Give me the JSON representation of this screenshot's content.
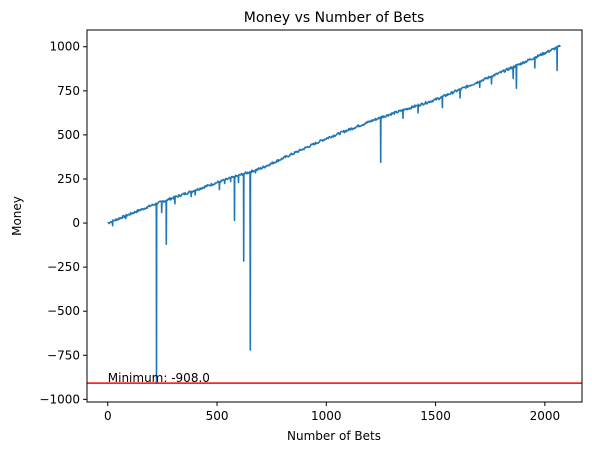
{
  "chart_data": {
    "type": "line",
    "title": "Money vs Number of Bets",
    "xlabel": "Number of Bets",
    "ylabel": "Money",
    "xlim": [
      -95,
      2170
    ],
    "ylim": [
      -1015,
      1095
    ],
    "xticks": [
      0,
      500,
      1000,
      1500,
      2000
    ],
    "yticks": [
      -1000,
      -750,
      -500,
      -250,
      0,
      250,
      500,
      750,
      1000
    ],
    "xtick_labels": [
      "0",
      "500",
      "1000",
      "1500",
      "2000"
    ],
    "ytick_labels": [
      "−1000",
      "−750",
      "−500",
      "−250",
      "0",
      "250",
      "500",
      "750",
      "1000"
    ],
    "grid": false,
    "series": [
      {
        "color": "#1f77b4",
        "trend": [
          [
            0,
            0
          ],
          [
            200,
            100
          ],
          [
            500,
            230
          ],
          [
            700,
            310
          ],
          [
            1000,
            480
          ],
          [
            1250,
            600
          ],
          [
            1500,
            700
          ],
          [
            1800,
            855
          ],
          [
            2070,
            1003
          ]
        ],
        "dips": [
          [
            22,
            -15
          ],
          [
            80,
            25
          ],
          [
            180,
            85
          ],
          [
            223,
            -908
          ],
          [
            245,
            60
          ],
          [
            268,
            -120
          ],
          [
            305,
            110
          ],
          [
            380,
            150
          ],
          [
            400,
            160
          ],
          [
            510,
            190
          ],
          [
            535,
            225
          ],
          [
            560,
            235
          ],
          [
            580,
            15
          ],
          [
            598,
            230
          ],
          [
            622,
            -215
          ],
          [
            650,
            -720
          ],
          [
            675,
            285
          ],
          [
            1248,
            345
          ],
          [
            1350,
            595
          ],
          [
            1420,
            625
          ],
          [
            1530,
            655
          ],
          [
            1610,
            710
          ],
          [
            1700,
            770
          ],
          [
            1755,
            790
          ],
          [
            1855,
            820
          ],
          [
            1870,
            765
          ],
          [
            1952,
            880
          ],
          [
            2055,
            865
          ]
        ]
      }
    ],
    "hline": {
      "y": -908,
      "color": "#ff0000"
    },
    "annotation": {
      "text": "Minimum: -908.0",
      "x": 0,
      "y": -908
    }
  }
}
